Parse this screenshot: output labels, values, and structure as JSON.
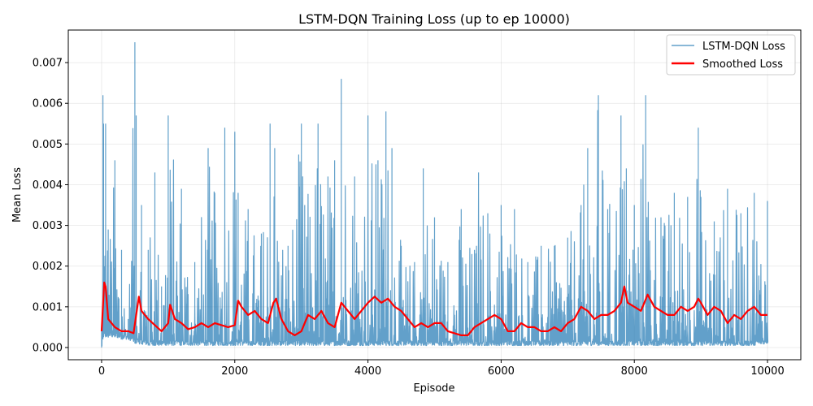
{
  "chart_data": {
    "type": "line",
    "title": "LSTM-DQN Training Loss (up to ep 10000)",
    "xlabel": "Episode",
    "ylabel": "Mean Loss",
    "xlim": [
      -500,
      10500
    ],
    "ylim": [
      -0.0003,
      0.0078
    ],
    "xticks": [
      0,
      2000,
      4000,
      6000,
      8000,
      10000
    ],
    "xtick_labels": [
      "0",
      "2000",
      "4000",
      "6000",
      "8000",
      "10000"
    ],
    "yticks": [
      0.0,
      0.001,
      0.002,
      0.003,
      0.004,
      0.005,
      0.006,
      0.007
    ],
    "ytick_labels": [
      "0.000",
      "0.001",
      "0.002",
      "0.003",
      "0.004",
      "0.005",
      "0.006",
      "0.007"
    ],
    "grid": true,
    "legend_position": "top-right",
    "colors": {
      "raw": "#1f77b4",
      "smoothed": "#ff0000"
    },
    "series": [
      {
        "name": "LSTM-DQN Loss",
        "style": "raw",
        "x": [
          0,
          20,
          30,
          60,
          100,
          200,
          300,
          400,
          500,
          520,
          600,
          700,
          800,
          900,
          1000,
          1200,
          1400,
          1600,
          1700,
          1850,
          2000,
          2050,
          2200,
          2400,
          2530,
          2600,
          2800,
          3000,
          3050,
          3250,
          3400,
          3500,
          3600,
          3800,
          4000,
          4150,
          4270,
          4360,
          4500,
          4700,
          4830,
          5000,
          5200,
          5400,
          5600,
          5660,
          5800,
          6000,
          6200,
          6400,
          6600,
          6800,
          7000,
          7200,
          7300,
          7460,
          7600,
          7800,
          7880,
          8000,
          8170,
          8400,
          8600,
          8800,
          8960,
          9000,
          9200,
          9400,
          9600,
          9800,
          10000
        ],
        "y_max": [
          0.0005,
          0.0062,
          0.0055,
          0.0055,
          0.0029,
          0.0046,
          0.0024,
          0.0007,
          0.0075,
          0.0057,
          0.0035,
          0.0024,
          0.0043,
          0.0015,
          0.0057,
          0.0039,
          0.0021,
          0.0049,
          0.0038,
          0.0054,
          0.0053,
          0.0038,
          0.0034,
          0.0028,
          0.0055,
          0.0049,
          0.0025,
          0.0055,
          0.0035,
          0.0055,
          0.0042,
          0.0046,
          0.0066,
          0.0042,
          0.0057,
          0.0046,
          0.0058,
          0.0049,
          0.0025,
          0.0021,
          0.0044,
          0.0032,
          0.0021,
          0.0034,
          0.0024,
          0.0043,
          0.0033,
          0.0035,
          0.0034,
          0.0021,
          0.0025,
          0.0025,
          0.0027,
          0.0035,
          0.0049,
          0.0062,
          0.0034,
          0.0057,
          0.0044,
          0.0035,
          0.0062,
          0.0032,
          0.0038,
          0.0037,
          0.0054,
          0.0037,
          0.0031,
          0.0039,
          0.0033,
          0.0038,
          0.0036
        ],
        "y_min": [
          0.0,
          0.0002,
          0.00025,
          0.00025,
          0.00025,
          0.00025,
          0.0002,
          0.0002,
          0.0001,
          0.0001,
          8e-05,
          5e-05,
          5e-05,
          5e-05,
          5e-05,
          5e-05,
          5e-05,
          5e-05,
          5e-05,
          5e-05,
          5e-05,
          5e-05,
          5e-05,
          5e-05,
          5e-05,
          5e-05,
          5e-05,
          5e-05,
          5e-05,
          5e-05,
          5e-05,
          5e-05,
          5e-05,
          5e-05,
          5e-05,
          5e-05,
          5e-05,
          5e-05,
          5e-05,
          5e-05,
          5e-05,
          5e-05,
          5e-05,
          5e-05,
          5e-05,
          5e-05,
          5e-05,
          5e-05,
          5e-05,
          5e-05,
          5e-05,
          5e-05,
          5e-05,
          5e-05,
          5e-05,
          5e-05,
          5e-05,
          5e-05,
          5e-05,
          5e-05,
          5e-05,
          5e-05,
          5e-05,
          5e-05,
          5e-05,
          5e-05,
          5e-05,
          5e-05,
          5e-05,
          5e-05,
          0.0001
        ]
      },
      {
        "name": "Smoothed Loss",
        "style": "smoothed",
        "x": [
          0,
          20,
          40,
          60,
          80,
          100,
          150,
          200,
          300,
          400,
          480,
          520,
          560,
          600,
          700,
          800,
          900,
          1000,
          1030,
          1100,
          1200,
          1300,
          1400,
          1500,
          1600,
          1700,
          1800,
          1900,
          2000,
          2050,
          2100,
          2200,
          2300,
          2400,
          2500,
          2580,
          2620,
          2700,
          2800,
          2900,
          3000,
          3100,
          3200,
          3300,
          3400,
          3500,
          3600,
          3700,
          3800,
          3900,
          4000,
          4100,
          4200,
          4300,
          4400,
          4500,
          4600,
          4700,
          4800,
          4900,
          5000,
          5100,
          5200,
          5300,
          5400,
          5500,
          5600,
          5700,
          5800,
          5900,
          6000,
          6100,
          6200,
          6300,
          6400,
          6500,
          6600,
          6700,
          6800,
          6900,
          7000,
          7100,
          7200,
          7300,
          7400,
          7500,
          7600,
          7700,
          7800,
          7850,
          7900,
          8000,
          8100,
          8200,
          8300,
          8400,
          8500,
          8600,
          8700,
          8800,
          8900,
          8960,
          9000,
          9100,
          9200,
          9300,
          9400,
          9500,
          9600,
          9700,
          9800,
          9900,
          10000
        ],
        "y": [
          0.0004,
          0.001,
          0.0016,
          0.0015,
          0.0011,
          0.0007,
          0.0006,
          0.0005,
          0.0004,
          0.0004,
          0.00035,
          0.0008,
          0.00125,
          0.0009,
          0.0007,
          0.00055,
          0.0004,
          0.0006,
          0.00105,
          0.0007,
          0.0006,
          0.00045,
          0.0005,
          0.0006,
          0.0005,
          0.0006,
          0.00055,
          0.0005,
          0.00055,
          0.00115,
          0.001,
          0.0008,
          0.0009,
          0.0007,
          0.0006,
          0.0011,
          0.0012,
          0.0007,
          0.0004,
          0.0003,
          0.0004,
          0.0008,
          0.0007,
          0.0009,
          0.0006,
          0.0005,
          0.0011,
          0.0009,
          0.0007,
          0.0009,
          0.0011,
          0.00125,
          0.0011,
          0.0012,
          0.001,
          0.0009,
          0.0007,
          0.0005,
          0.0006,
          0.0005,
          0.0006,
          0.0006,
          0.0004,
          0.00035,
          0.0003,
          0.0003,
          0.0005,
          0.0006,
          0.0007,
          0.0008,
          0.0007,
          0.0004,
          0.0004,
          0.0006,
          0.0005,
          0.0005,
          0.0004,
          0.0004,
          0.0005,
          0.0004,
          0.0006,
          0.0007,
          0.001,
          0.0009,
          0.0007,
          0.0008,
          0.0008,
          0.0009,
          0.0011,
          0.0015,
          0.0011,
          0.001,
          0.0009,
          0.0013,
          0.001,
          0.0009,
          0.0008,
          0.0008,
          0.001,
          0.0009,
          0.001,
          0.0012,
          0.0011,
          0.0008,
          0.001,
          0.0009,
          0.0006,
          0.0008,
          0.0007,
          0.0009,
          0.001,
          0.0008,
          0.0008
        ]
      }
    ]
  }
}
